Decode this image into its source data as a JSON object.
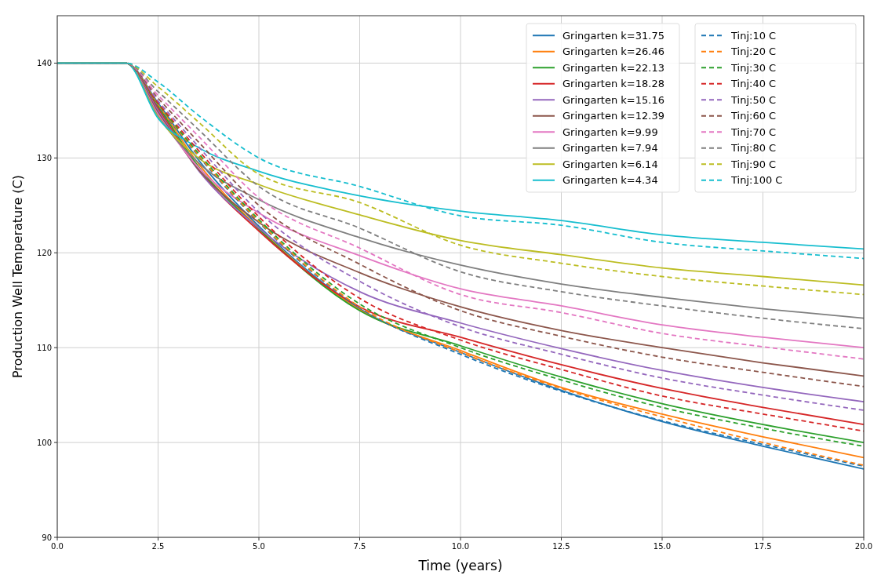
{
  "chart_data": {
    "type": "line",
    "xlabel": "Time (years)",
    "ylabel": "Production Well Temperature (C)",
    "x": [
      0,
      1.7,
      2.5,
      3.5,
      5,
      7.5,
      10,
      12.5,
      15,
      17.5,
      20
    ],
    "xlim": [
      0,
      20
    ],
    "ylim": [
      90,
      145
    ],
    "xticks": [
      {
        "value": 0,
        "label": "0.0"
      },
      {
        "value": 2.5,
        "label": "2.5"
      },
      {
        "value": 5,
        "label": "5.0"
      },
      {
        "value": 7.5,
        "label": "7.5"
      },
      {
        "value": 10,
        "label": "10.0"
      },
      {
        "value": 12.5,
        "label": "12.5"
      },
      {
        "value": 15,
        "label": "15.0"
      },
      {
        "value": 17.5,
        "label": "17.5"
      },
      {
        "value": 20,
        "label": "20.0"
      }
    ],
    "yticks": [
      90,
      100,
      110,
      120,
      130,
      140
    ],
    "grid": true,
    "legend": "top right",
    "series": [
      {
        "name": "Gringarten k=31.75",
        "color": "#1f77b4",
        "line_style": "solid",
        "values": [
          140,
          140,
          135.8,
          129.8,
          122.8,
          114.1,
          109.5,
          105.5,
          102.2,
          99.6,
          97.2
        ]
      },
      {
        "name": "Gringarten k=26.46",
        "color": "#ff7f0e",
        "line_style": "solid",
        "values": [
          140,
          140,
          135.6,
          129.4,
          122.6,
          114.0,
          109.7,
          105.8,
          103.0,
          100.6,
          98.4
        ]
      },
      {
        "name": "Gringarten k=22.13",
        "color": "#2ca02c",
        "line_style": "solid",
        "values": [
          140,
          140,
          135.4,
          129.1,
          122.5,
          113.9,
          110.2,
          106.9,
          104.1,
          101.9,
          100.0
        ]
      },
      {
        "name": "Gringarten k=18.28",
        "color": "#d62728",
        "line_style": "solid",
        "values": [
          140,
          140,
          135.2,
          128.8,
          122.3,
          114.3,
          111.1,
          108.2,
          105.7,
          103.7,
          101.9
        ]
      },
      {
        "name": "Gringarten k=15.16",
        "color": "#9467bd",
        "line_style": "solid",
        "values": [
          140,
          140,
          135.0,
          128.7,
          122.6,
          115.9,
          112.6,
          109.9,
          107.6,
          105.8,
          104.3
        ]
      },
      {
        "name": "Gringarten k=12.39",
        "color": "#8c564b",
        "line_style": "solid",
        "values": [
          140,
          140,
          134.8,
          128.8,
          123.2,
          117.9,
          114.3,
          111.8,
          110.0,
          108.4,
          107.0
        ]
      },
      {
        "name": "Gringarten k=9.99",
        "color": "#e377c2",
        "line_style": "solid",
        "values": [
          140,
          140,
          134.6,
          129.0,
          124.2,
          119.7,
          116.2,
          114.4,
          112.4,
          111.1,
          110.0
        ]
      },
      {
        "name": "Gringarten k=7.94",
        "color": "#7f7f7f",
        "line_style": "solid",
        "values": [
          140,
          140,
          134.4,
          129.5,
          125.6,
          121.6,
          118.7,
          116.7,
          115.3,
          114.1,
          113.1
        ]
      },
      {
        "name": "Gringarten k=6.14",
        "color": "#bcbd22",
        "line_style": "solid",
        "values": [
          140,
          140,
          134.3,
          130.0,
          127.2,
          124.0,
          121.3,
          119.8,
          118.4,
          117.5,
          116.6
        ]
      },
      {
        "name": "Gringarten k=4.34",
        "color": "#17becf",
        "line_style": "solid",
        "values": [
          140,
          140,
          134.2,
          131.1,
          128.6,
          126.0,
          124.4,
          123.4,
          121.9,
          121.1,
          120.4
        ]
      },
      {
        "name": "Tinj:10 C",
        "color": "#1f77b4",
        "line_style": "dashed",
        "values": [
          140,
          140,
          135.5,
          130.2,
          123.2,
          114.2,
          109.3,
          105.4,
          102.3,
          99.8,
          97.5
        ]
      },
      {
        "name": "Tinj:20 C",
        "color": "#ff7f0e",
        "line_style": "dashed",
        "values": [
          140,
          140,
          135.6,
          130.3,
          123.3,
          114.3,
          109.5,
          105.7,
          102.7,
          100.0,
          97.6
        ]
      },
      {
        "name": "Tinj:30 C",
        "color": "#2ca02c",
        "line_style": "dashed",
        "values": [
          140,
          140,
          135.7,
          130.5,
          123.5,
          114.6,
          110.0,
          106.6,
          103.7,
          101.5,
          99.6
        ]
      },
      {
        "name": "Tinj:40 C",
        "color": "#d62728",
        "line_style": "dashed",
        "values": [
          140,
          140,
          135.8,
          130.8,
          123.8,
          115.2,
          110.8,
          107.7,
          104.9,
          103.0,
          101.2
        ]
      },
      {
        "name": "Tinj:50 C",
        "color": "#9467bd",
        "line_style": "dashed",
        "values": [
          140,
          140,
          136.0,
          131.2,
          124.3,
          117.0,
          112.2,
          109.3,
          106.8,
          105.0,
          103.4
        ]
      },
      {
        "name": "Tinj:60 C",
        "color": "#8c564b",
        "line_style": "dashed",
        "values": [
          140,
          140,
          136.3,
          131.7,
          125.0,
          118.8,
          113.9,
          111.2,
          109.0,
          107.4,
          105.9
        ]
      },
      {
        "name": "Tinj:70 C",
        "color": "#e377c2",
        "line_style": "dashed",
        "values": [
          140,
          140,
          136.6,
          132.3,
          125.8,
          120.5,
          115.6,
          113.7,
          111.5,
          110.1,
          108.8
        ]
      },
      {
        "name": "Tinj:80 C",
        "color": "#7f7f7f",
        "line_style": "dashed",
        "values": [
          140,
          140,
          137.0,
          133.0,
          127.0,
          122.6,
          118.0,
          115.9,
          114.4,
          113.1,
          112.0
        ]
      },
      {
        "name": "Tinj:90 C",
        "color": "#bcbd22",
        "line_style": "dashed",
        "values": [
          140,
          140,
          137.5,
          133.8,
          128.3,
          125.3,
          120.8,
          118.9,
          117.5,
          116.5,
          115.6
        ]
      },
      {
        "name": "Tinj:100 C",
        "color": "#17becf",
        "line_style": "dashed",
        "values": [
          140,
          140,
          138.0,
          134.5,
          130.0,
          127.0,
          123.9,
          122.9,
          121.1,
          120.2,
          119.4
        ]
      }
    ]
  }
}
